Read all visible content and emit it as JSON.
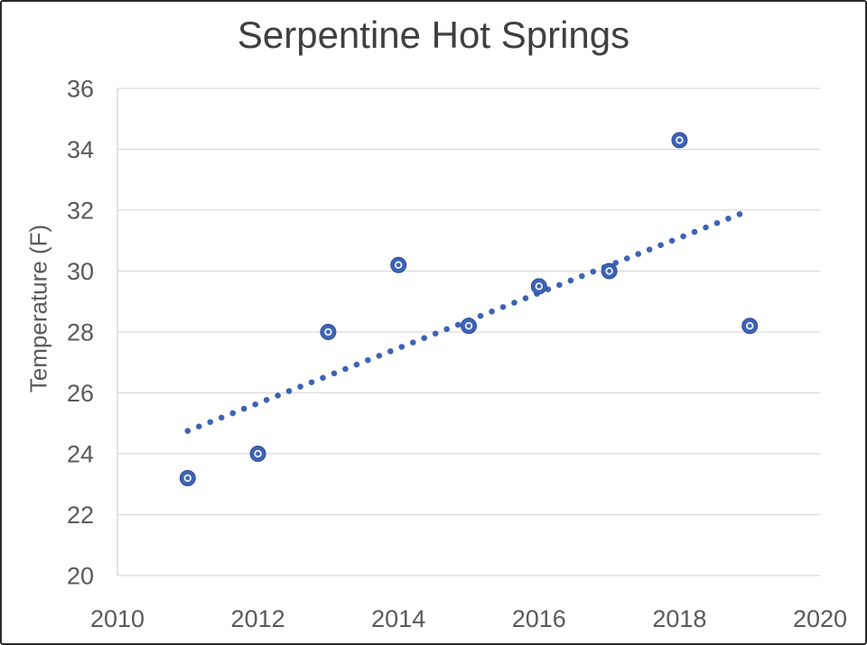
{
  "chart_data": {
    "type": "scatter",
    "title": "Serpentine Hot Springs",
    "xlabel": "",
    "ylabel": "Temperature (F)",
    "xlim": [
      2010,
      2020
    ],
    "ylim": [
      20,
      36
    ],
    "x_ticks": [
      2010,
      2012,
      2014,
      2016,
      2018,
      2020
    ],
    "y_ticks": [
      20,
      22,
      24,
      26,
      28,
      30,
      32,
      34,
      36
    ],
    "grid": "horizontal",
    "legend": "none",
    "series": [
      {
        "name": "Temperature",
        "marker": "circle-with-inner-ring",
        "color": "#3d63b4",
        "edge_color": "#2d4f99",
        "inner_ring_color": "#e8eef8",
        "points": [
          {
            "x": 2011,
            "y": 23.2
          },
          {
            "x": 2012,
            "y": 24.0
          },
          {
            "x": 2013,
            "y": 28.0
          },
          {
            "x": 2014,
            "y": 30.2
          },
          {
            "x": 2015,
            "y": 28.2
          },
          {
            "x": 2016,
            "y": 29.5
          },
          {
            "x": 2017,
            "y": 30.0
          },
          {
            "x": 2018,
            "y": 34.3
          },
          {
            "x": 2019,
            "y": 28.2
          }
        ]
      }
    ],
    "trendline": {
      "style": "dotted",
      "color": "#3d63b4",
      "start": {
        "x": 2011,
        "y": 24.75
      },
      "end": {
        "x": 2019,
        "y": 32.0
      }
    }
  },
  "colors": {
    "background": "#ffffff",
    "frame_border": "#2a2a2a",
    "title_text": "#3f3f3f",
    "tick_label": "#595959",
    "axis_label": "#595959",
    "gridline": "#d9d9d9",
    "axis_line": "#d2d2d2",
    "accent_blue": "#3d63b4"
  }
}
